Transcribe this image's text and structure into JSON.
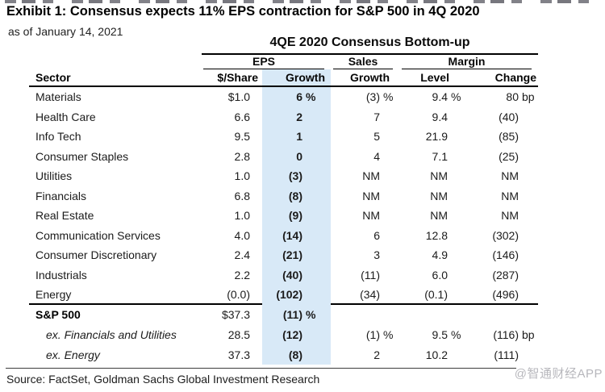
{
  "exhibit": {
    "title": "Exhibit 1: Consensus expects 11% EPS contraction for S&P 500 in 4Q 2020",
    "subtitle": "as of January 14, 2021",
    "source": "Source: FactSet, Goldman Sachs Global Investment Research",
    "watermark": "@智通财经APP"
  },
  "colors": {
    "highlight": "#d8e9f7"
  },
  "table": {
    "title": "4QE 2020 Consensus Bottom-up",
    "groups": {
      "eps": "EPS",
      "sales": "Sales",
      "margin": "Margin"
    },
    "columns": {
      "sector": "Sector",
      "eps_share": "$/Share",
      "eps_growth": "Growth",
      "sales_growth": "Growth",
      "margin_level": "Level",
      "margin_change": "Change"
    },
    "rows": [
      {
        "sector": "Materials",
        "eps_share": "$1.0",
        "eps_growth": "6 %",
        "sales_growth": "(3)%",
        "margin_level": "9.4 %",
        "margin_change": "80 bp"
      },
      {
        "sector": "Health Care",
        "eps_share": "6.6",
        "eps_growth": "2",
        "sales_growth": "7",
        "margin_level": "9.4",
        "margin_change": "(40)"
      },
      {
        "sector": "Info Tech",
        "eps_share": "9.5",
        "eps_growth": "1",
        "sales_growth": "5",
        "margin_level": "21.9",
        "margin_change": "(85)"
      },
      {
        "sector": "Consumer Staples",
        "eps_share": "2.8",
        "eps_growth": "0",
        "sales_growth": "4",
        "margin_level": "7.1",
        "margin_change": "(25)"
      },
      {
        "sector": "Utilities",
        "eps_share": "1.0",
        "eps_growth": "(3)",
        "sales_growth": "NM",
        "margin_level": "NM",
        "margin_change": "NM"
      },
      {
        "sector": "Financials",
        "eps_share": "6.8",
        "eps_growth": "(8)",
        "sales_growth": "NM",
        "margin_level": "NM",
        "margin_change": "NM"
      },
      {
        "sector": "Real Estate",
        "eps_share": "1.0",
        "eps_growth": "(9)",
        "sales_growth": "NM",
        "margin_level": "NM",
        "margin_change": "NM"
      },
      {
        "sector": "Communication Services",
        "eps_share": "4.0",
        "eps_growth": "(14)",
        "sales_growth": "6",
        "margin_level": "12.8",
        "margin_change": "(302)"
      },
      {
        "sector": "Consumer Discretionary",
        "eps_share": "2.4",
        "eps_growth": "(21)",
        "sales_growth": "3",
        "margin_level": "4.9",
        "margin_change": "(146)"
      },
      {
        "sector": "Industrials",
        "eps_share": "2.2",
        "eps_growth": "(40)",
        "sales_growth": "(11)",
        "margin_level": "6.0",
        "margin_change": "(287)"
      },
      {
        "sector": "Energy",
        "eps_share": "(0.0)",
        "eps_growth": "(102)",
        "sales_growth": "(34)",
        "margin_level": "(0.1)",
        "margin_change": "(496)"
      }
    ],
    "summary_rows": [
      {
        "sector": "S&P 500",
        "style": "total",
        "eps_share": "$37.3",
        "eps_growth": "(11)%",
        "sales_growth": "",
        "margin_level": "",
        "margin_change": ""
      },
      {
        "sector": "ex. Financials and Utilities",
        "style": "ex",
        "eps_share": "28.5",
        "eps_growth": "(12)",
        "sales_growth": "(1)%",
        "margin_level": "9.5 %",
        "margin_change": "(116)bp"
      },
      {
        "sector": "ex. Energy",
        "style": "ex",
        "eps_share": "37.3",
        "eps_growth": "(8)",
        "sales_growth": "2",
        "margin_level": "10.2",
        "margin_change": "(111)"
      }
    ]
  }
}
